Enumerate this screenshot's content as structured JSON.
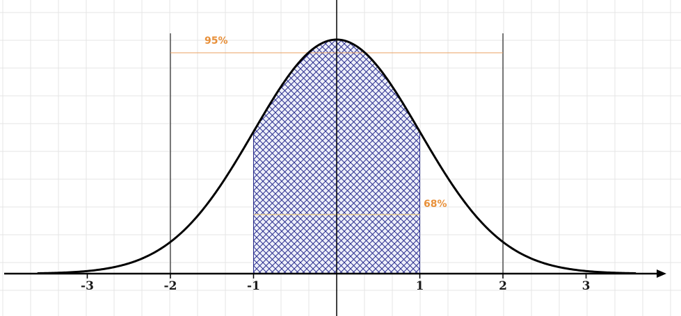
{
  "chart_data": {
    "type": "area",
    "title": "",
    "xlabel": "",
    "ylabel": "",
    "xlim": [
      -3.6,
      3.6
    ],
    "grid": true,
    "curve": {
      "name": "standard normal density",
      "mean": 0,
      "sd": 1
    },
    "x_ticks": [
      -3,
      -2,
      -1,
      1,
      2,
      3
    ],
    "x_tick_labels": [
      "-3",
      "-2",
      "-1",
      "1",
      "2",
      "3"
    ],
    "shaded_region": {
      "from": -1,
      "to": 1,
      "pattern": "crosshatch"
    },
    "annotations": [
      {
        "label": "95%",
        "from": -2,
        "to": 2
      },
      {
        "label": "68%",
        "from": -1,
        "to": 1
      }
    ],
    "colors": {
      "curve": "#000000",
      "hatch": "#2b2f8f",
      "hatch_bg": "#eef0fa",
      "annotation_text": "#e8903a",
      "annotation_95_line": "#e8a060",
      "annotation_68_line": "#f2d080",
      "grid": "#e4e4e4",
      "axis": "#000000"
    }
  }
}
